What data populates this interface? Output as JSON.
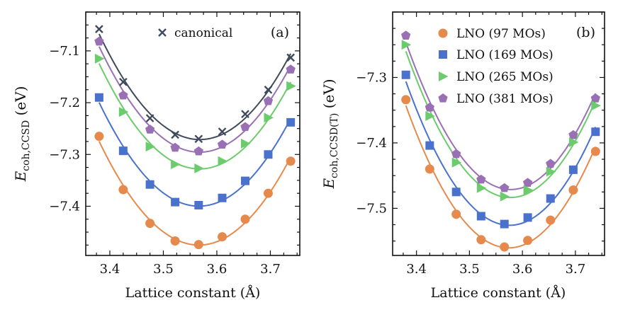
{
  "chart_data": [
    {
      "type": "line",
      "panel_label": "(a)",
      "xlabel": "Lattice constant (Å)",
      "ylabel_main": "E",
      "ylabel_sub": "coh,CCSD",
      "ylabel_unit": " (eV)",
      "xlim": [
        3.355,
        3.755
      ],
      "ylim": [
        -7.495,
        -7.025
      ],
      "xticks": [
        3.4,
        3.5,
        3.6,
        3.7
      ],
      "xtick_labels": [
        "3.4",
        "3.5",
        "3.6",
        "3.7"
      ],
      "yticks": [
        -7.1,
        -7.2,
        -7.3,
        -7.4
      ],
      "ytick_labels": [
        "−7.1",
        "−7.2",
        "−7.3",
        "−7.4"
      ],
      "legend_position": "top-center",
      "x": [
        3.38,
        3.425,
        3.475,
        3.522,
        3.566,
        3.61,
        3.653,
        3.696,
        3.738
      ],
      "series": [
        {
          "name": "canonical",
          "marker": "x",
          "color": "#3f4a5a",
          "in_legend": true,
          "values": [
            -7.058,
            -7.16,
            -7.23,
            -7.262,
            -7.27,
            -7.256,
            -7.222,
            -7.175,
            -7.113
          ]
        },
        {
          "name": "LNO (381 MOs)",
          "marker": "pentagon",
          "color": "#9a70b4",
          "in_legend": false,
          "values": [
            -7.082,
            -7.186,
            -7.252,
            -7.287,
            -7.294,
            -7.281,
            -7.247,
            -7.197,
            -7.136
          ]
        },
        {
          "name": "LNO (265 MOs)",
          "marker": "triangle-right",
          "color": "#6ccb6c",
          "in_legend": false,
          "values": [
            -7.115,
            -7.218,
            -7.285,
            -7.319,
            -7.327,
            -7.313,
            -7.279,
            -7.229,
            -7.168
          ]
        },
        {
          "name": "LNO (169 MOs)",
          "marker": "square",
          "color": "#4a72cd",
          "in_legend": false,
          "values": [
            -7.19,
            -7.293,
            -7.358,
            -7.392,
            -7.398,
            -7.384,
            -7.351,
            -7.3,
            -7.238
          ]
        },
        {
          "name": "LNO (97 MOs)",
          "marker": "circle",
          "color": "#e58a4c",
          "in_legend": false,
          "values": [
            -7.265,
            -7.368,
            -7.433,
            -7.467,
            -7.474,
            -7.459,
            -7.425,
            -7.375,
            -7.313
          ]
        }
      ]
    },
    {
      "type": "line",
      "panel_label": "(b)",
      "xlabel": "Lattice constant (Å)",
      "ylabel_main": "E",
      "ylabel_sub": "coh,CCSD(T)",
      "ylabel_unit": " (eV)",
      "xlim": [
        3.355,
        3.755
      ],
      "ylim": [
        -7.572,
        -7.2
      ],
      "xticks": [
        3.4,
        3.5,
        3.6,
        3.7
      ],
      "xtick_labels": [
        "3.4",
        "3.5",
        "3.6",
        "3.7"
      ],
      "yticks": [
        -7.3,
        -7.4,
        -7.5
      ],
      "ytick_labels": [
        "−7.3",
        "−7.4",
        "−7.5"
      ],
      "legend_position": "top-right",
      "x": [
        3.38,
        3.425,
        3.475,
        3.522,
        3.566,
        3.61,
        3.653,
        3.696,
        3.738
      ],
      "series": [
        {
          "name": "LNO (381 MOs)",
          "marker": "pentagon",
          "color": "#9a70b4",
          "in_legend": true,
          "values": [
            -7.236,
            -7.346,
            -7.417,
            -7.456,
            -7.469,
            -7.461,
            -7.432,
            -7.388,
            -7.332
          ]
        },
        {
          "name": "LNO (265 MOs)",
          "marker": "triangle-right",
          "color": "#6ccb6c",
          "in_legend": true,
          "values": [
            -7.25,
            -7.359,
            -7.43,
            -7.469,
            -7.482,
            -7.472,
            -7.444,
            -7.399,
            -7.343
          ]
        },
        {
          "name": "LNO (169 MOs)",
          "marker": "square",
          "color": "#4a72cd",
          "in_legend": true,
          "values": [
            -7.296,
            -7.404,
            -7.475,
            -7.512,
            -7.524,
            -7.514,
            -7.485,
            -7.441,
            -7.383
          ]
        },
        {
          "name": "LNO (97 MOs)",
          "marker": "circle",
          "color": "#e58a4c",
          "in_legend": true,
          "values": [
            -7.334,
            -7.44,
            -7.509,
            -7.548,
            -7.559,
            -7.549,
            -7.518,
            -7.472,
            -7.413
          ]
        }
      ],
      "legend_order": [
        "LNO (97 MOs)",
        "LNO (169 MOs)",
        "LNO (265 MOs)",
        "LNO (381 MOs)"
      ]
    }
  ]
}
